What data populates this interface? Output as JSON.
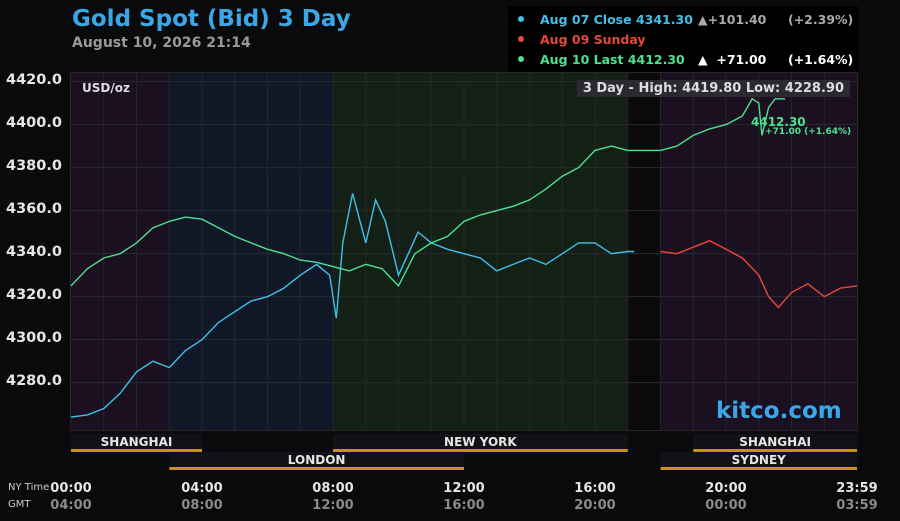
{
  "header": {
    "title": "Gold Spot (Bid) 3 Day",
    "timestamp": "August 10, 2026 21:14"
  },
  "legend": [
    {
      "label": "Aug 07 Close",
      "price": "4341.30",
      "arrow": "▲",
      "change": "+101.40",
      "pct": "(+2.39%)",
      "color": "#3fc1ea"
    },
    {
      "label": "Aug 09 Sunday",
      "price": "",
      "arrow": "",
      "change": "",
      "pct": "",
      "color": "#e8473a"
    },
    {
      "label": "Aug 10 Last",
      "price": "4412.30",
      "arrow": "▲",
      "change": "+71.00",
      "pct": "(+1.64%)",
      "color": "#4fe08f"
    }
  ],
  "chart_meta": {
    "unit": "USD/oz",
    "hilo": "3 Day - High: 4419.80  Low: 4228.90",
    "last_price": "4412.30",
    "last_change": "+71.00 (+1.64%)",
    "brand": "kitco.com",
    "tz_ny": "NY Time",
    "tz_gmt": "GMT"
  },
  "markets_top": [
    {
      "name": "SHANGHAI",
      "start": 0,
      "end": 4
    },
    {
      "name": "NEW YORK",
      "start": 8,
      "end": 17
    },
    {
      "name": "SHANGHAI",
      "start": 19,
      "end": 24
    }
  ],
  "markets_bottom": [
    {
      "name": "LONDON",
      "start": 3,
      "end": 12
    },
    {
      "name": "SYDNEY",
      "start": 18,
      "end": 24
    }
  ],
  "chart_data": {
    "type": "line",
    "title": "Gold Spot (Bid) 3 Day",
    "ylabel": "USD/oz",
    "x_range_hours": [
      0,
      24
    ],
    "ylim": [
      4258,
      4424
    ],
    "x_ticks_ny": [
      "00:00",
      "04:00",
      "08:00",
      "12:00",
      "16:00",
      "20:00",
      "23:59"
    ],
    "x_ticks_gmt": [
      "04:00",
      "08:00",
      "12:00",
      "16:00",
      "20:00",
      "00:00",
      "03:59"
    ],
    "x_tick_hours": [
      0,
      4,
      8,
      12,
      16,
      20,
      24
    ],
    "y_ticks": [
      4280,
      4300,
      4320,
      4340,
      4360,
      4380,
      4400,
      4420
    ],
    "series": [
      {
        "name": "Aug 07",
        "color": "#3fc1ea",
        "x": [
          0,
          0.5,
          1,
          1.5,
          2,
          2.5,
          3,
          3.5,
          4,
          4.5,
          5,
          5.5,
          6,
          6.5,
          7,
          7.5,
          7.9,
          8.1,
          8.3,
          8.6,
          9,
          9.3,
          9.6,
          10,
          10.3,
          10.6,
          11,
          11.5,
          12,
          12.5,
          13,
          13.5,
          14,
          14.5,
          15,
          15.5,
          16,
          16.5,
          17,
          17.2
        ],
        "y": [
          4264,
          4265,
          4268,
          4275,
          4285,
          4290,
          4287,
          4295,
          4300,
          4308,
          4313,
          4318,
          4320,
          4324,
          4330,
          4335,
          4330,
          4310,
          4345,
          4368,
          4345,
          4365,
          4355,
          4330,
          4340,
          4350,
          4345,
          4342,
          4340,
          4338,
          4332,
          4335,
          4338,
          4335,
          4340,
          4345,
          4345,
          4340,
          4341,
          4341
        ]
      },
      {
        "name": "Aug 09",
        "color": "#e8473a",
        "x": [
          18,
          18.5,
          19,
          19.5,
          20,
          20.5,
          21,
          21.3,
          21.6,
          22,
          22.5,
          23,
          23.5,
          24
        ],
        "y": [
          4341,
          4340,
          4343,
          4346,
          4342,
          4338,
          4330,
          4320,
          4315,
          4322,
          4326,
          4320,
          4324,
          4325
        ]
      },
      {
        "name": "Aug 10",
        "color": "#4fe08f",
        "x": [
          0,
          0.5,
          1,
          1.5,
          2,
          2.5,
          3,
          3.5,
          4,
          4.5,
          5,
          5.5,
          6,
          6.5,
          7,
          7.5,
          8,
          8.5,
          9,
          9.5,
          10,
          10.5,
          11,
          11.5,
          12,
          12.5,
          13,
          13.5,
          14,
          14.5,
          15,
          15.5,
          16,
          16.5,
          17,
          17.5,
          18,
          18.5,
          19,
          19.5,
          20,
          20.5,
          20.8,
          21,
          21.1,
          21.3,
          21.5,
          21.8
        ],
        "y": [
          4325,
          4333,
          4338,
          4340,
          4345,
          4352,
          4355,
          4357,
          4356,
          4352,
          4348,
          4345,
          4342,
          4340,
          4337,
          4336,
          4334,
          4332,
          4335,
          4333,
          4325,
          4340,
          4345,
          4348,
          4355,
          4358,
          4360,
          4362,
          4365,
          4370,
          4376,
          4380,
          4388,
          4390,
          4388,
          4388,
          4388,
          4390,
          4395,
          4398,
          4400,
          4404,
          4412,
          4410,
          4395,
          4408,
          4412,
          4412
        ]
      }
    ]
  }
}
